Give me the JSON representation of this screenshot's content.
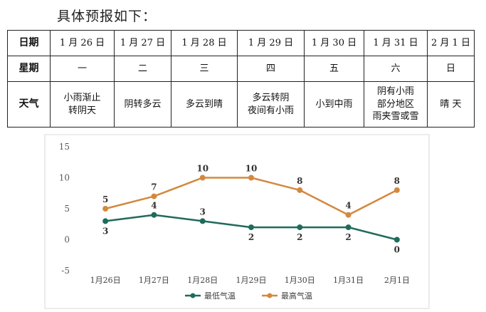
{
  "heading": "具体预报如下：",
  "forecast_table": {
    "rows": [
      {
        "header": "日期",
        "cells": [
          "1 月 26 日",
          "1 月 27 日",
          "1 月 28 日",
          "1 月 29 日",
          "1 月 30 日",
          "1 月 31 日",
          "2 月 1 日"
        ]
      },
      {
        "header": "星期",
        "cells": [
          "一",
          "二",
          "三",
          "四",
          "五",
          "六",
          "日"
        ]
      },
      {
        "header": "天气",
        "cells": [
          "小雨渐止\n转阴天",
          "阴转多云",
          "多云到晴",
          "多云转阴\n夜间有小雨",
          "小到中雨",
          "阴有小雨\n部分地区\n雨夹雪或雪",
          "晴 天"
        ]
      }
    ]
  },
  "chart_data": {
    "type": "line",
    "categories": [
      "1月26日",
      "1月27日",
      "1月28日",
      "1月29日",
      "1月30日",
      "1月31日",
      "2月1日"
    ],
    "series": [
      {
        "name": "最低气温",
        "values": [
          3,
          4,
          3,
          2,
          2,
          2,
          0
        ],
        "color": "#1f6b5c"
      },
      {
        "name": "最高气温",
        "values": [
          5,
          7,
          10,
          10,
          8,
          4,
          8
        ],
        "color": "#d4883e"
      }
    ],
    "ylim": [
      -5,
      15
    ],
    "yticks": [
      15,
      10,
      5,
      0,
      -5
    ],
    "grid": false,
    "legend_position": "bottom",
    "title": "",
    "xlabel": "",
    "ylabel": ""
  }
}
